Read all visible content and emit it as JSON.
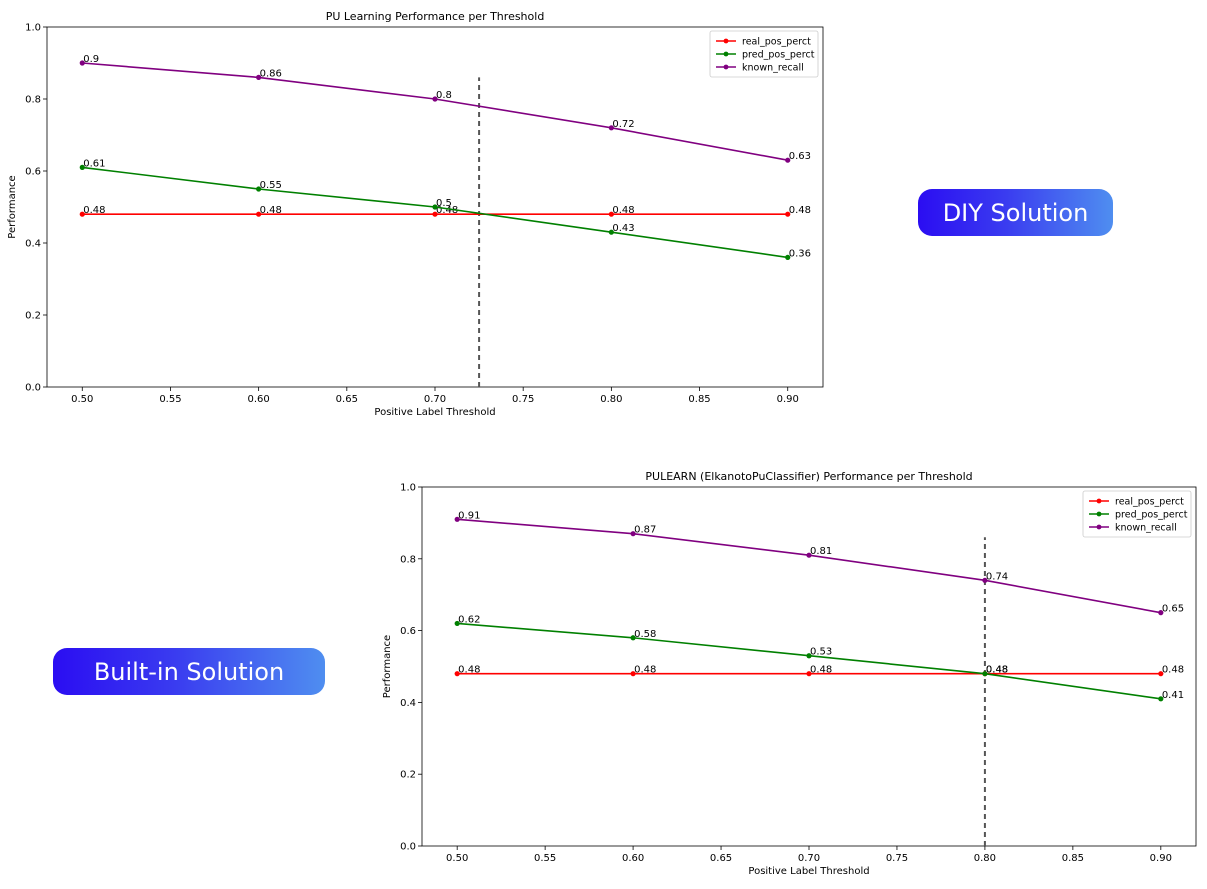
{
  "badges": {
    "diy": "DIY Solution",
    "builtin": "Built-in Solution"
  },
  "chart_data": [
    {
      "type": "line",
      "title": "PU Learning Performance per Threshold",
      "xlabel": "Positive Label Threshold",
      "ylabel": "Performance",
      "x": [
        0.5,
        0.6,
        0.7,
        0.8,
        0.9
      ],
      "xlim": [
        0.48,
        0.92
      ],
      "ylim": [
        0.0,
        1.0
      ],
      "xticks": [
        "0.50",
        "0.55",
        "0.60",
        "0.65",
        "0.70",
        "0.75",
        "0.80",
        "0.85",
        "0.90"
      ],
      "yticks": [
        "0.0",
        "0.2",
        "0.4",
        "0.6",
        "0.8",
        "1.0"
      ],
      "vline": 0.725,
      "legend_position": "top-right",
      "grid": false,
      "series": [
        {
          "name": "real_pos_perct",
          "color": "#ff0000",
          "values": [
            0.48,
            0.48,
            0.48,
            0.48,
            0.48
          ],
          "labels": [
            "0.48",
            "0.48",
            "0.48",
            "0.48",
            "0.48"
          ]
        },
        {
          "name": "pred_pos_perct",
          "color": "#008000",
          "values": [
            0.61,
            0.55,
            0.5,
            0.43,
            0.36
          ],
          "labels": [
            "0.61",
            "0.55",
            "0.5",
            "0.43",
            "0.36"
          ]
        },
        {
          "name": "known_recall",
          "color": "#800080",
          "values": [
            0.9,
            0.86,
            0.8,
            0.72,
            0.63
          ],
          "labels": [
            "0.9",
            "0.86",
            "0.8",
            "0.72",
            "0.63"
          ]
        }
      ]
    },
    {
      "type": "line",
      "title": "PULEARN (ElkanotoPuClassifier) Performance per Threshold",
      "xlabel": "Positive Label Threshold",
      "ylabel": "Performance",
      "x": [
        0.5,
        0.6,
        0.7,
        0.8,
        0.9
      ],
      "xlim": [
        0.48,
        0.92
      ],
      "ylim": [
        0.0,
        1.0
      ],
      "xticks": [
        "0.50",
        "0.55",
        "0.60",
        "0.65",
        "0.70",
        "0.75",
        "0.80",
        "0.85",
        "0.90"
      ],
      "yticks": [
        "0.0",
        "0.2",
        "0.4",
        "0.6",
        "0.8",
        "1.0"
      ],
      "vline": 0.8,
      "legend_position": "top-right",
      "grid": false,
      "series": [
        {
          "name": "real_pos_perct",
          "color": "#ff0000",
          "values": [
            0.48,
            0.48,
            0.48,
            0.48,
            0.48
          ],
          "labels": [
            "0.48",
            "0.48",
            "0.48",
            "0.48",
            "0.48"
          ]
        },
        {
          "name": "pred_pos_perct",
          "color": "#008000",
          "values": [
            0.62,
            0.58,
            0.53,
            0.48,
            0.41
          ],
          "labels": [
            "0.62",
            "0.58",
            "0.53",
            "0.48",
            "0.41"
          ]
        },
        {
          "name": "known_recall",
          "color": "#800080",
          "values": [
            0.91,
            0.87,
            0.81,
            0.74,
            0.65
          ],
          "labels": [
            "0.91",
            "0.87",
            "0.81",
            "0.74",
            "0.65"
          ]
        }
      ]
    }
  ]
}
